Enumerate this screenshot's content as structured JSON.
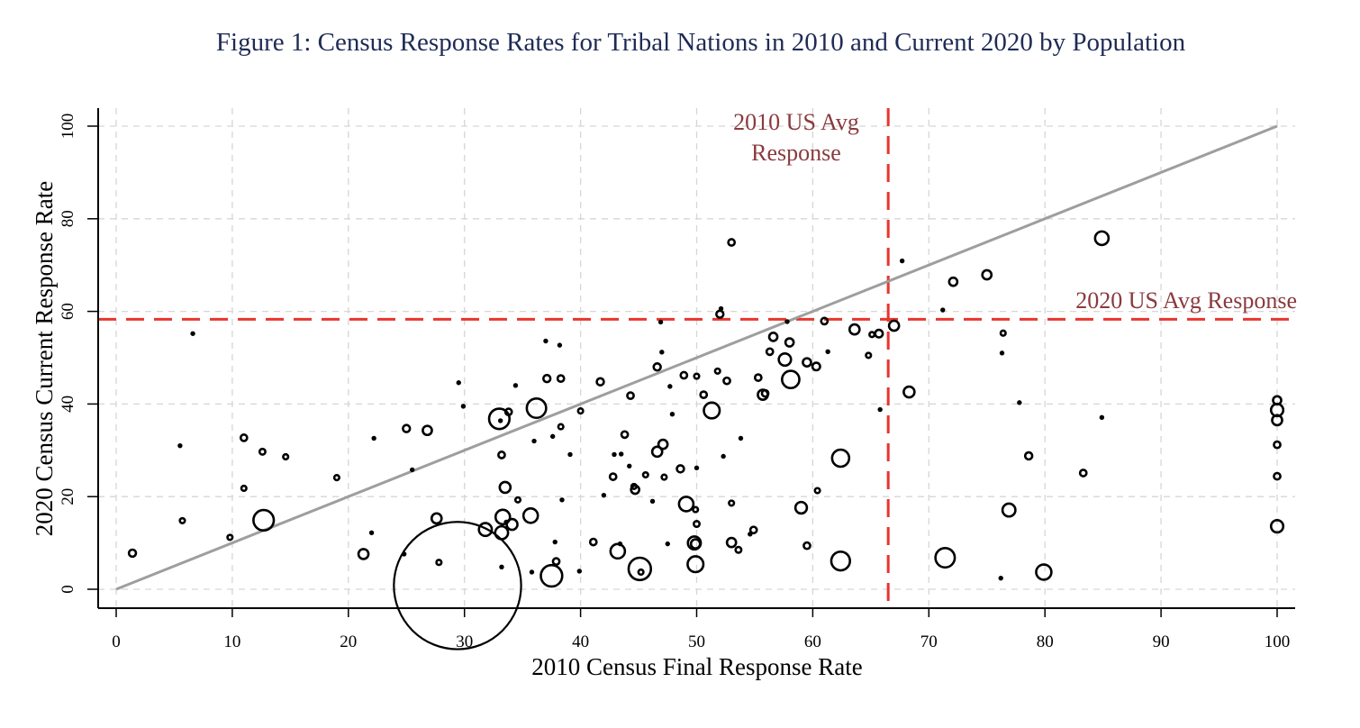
{
  "chart_data": {
    "type": "scatter",
    "subtype": "bubble",
    "title": "Figure 1: Census Response Rates for Tribal Nations in 2010 and Current 2020 by Population",
    "xlabel": "2010 Census Final Response Rate",
    "ylabel": "2020 Census Current Response Rate",
    "xlim": [
      0,
      100
    ],
    "ylim": [
      0,
      100
    ],
    "xticks": [
      0,
      10,
      20,
      30,
      40,
      50,
      60,
      70,
      80,
      90,
      100
    ],
    "yticks": [
      0,
      20,
      40,
      60,
      80,
      100
    ],
    "grid": true,
    "bubble_size_represents": "Population",
    "reference_lines": [
      {
        "name": "2010 US Avg Response",
        "orientation": "vertical",
        "value": 66.5,
        "color": "#e8352e",
        "style": "dashed",
        "label": "2010 US Avg Response",
        "label_lines": [
          "2010 US Avg",
          "Response"
        ]
      },
      {
        "name": "2020 US Avg Response",
        "orientation": "horizontal",
        "value": 58.3,
        "color": "#e8352e",
        "style": "dashed",
        "label": "2020 US Avg Response"
      }
    ],
    "diagonal": {
      "name": "45-degree line",
      "from": [
        0,
        0
      ],
      "to": [
        100,
        100
      ],
      "color": "#9e9e9e"
    },
    "annotation_color": "#8a3a3e",
    "points": [
      {
        "x": 1.4,
        "y": 7.8,
        "pop": 6
      },
      {
        "x": 5.5,
        "y": 31,
        "pop": 1.5
      },
      {
        "x": 5.7,
        "y": 14.8,
        "pop": 3
      },
      {
        "x": 6.6,
        "y": 55.2,
        "pop": 2
      },
      {
        "x": 9.8,
        "y": 11.2,
        "pop": 3
      },
      {
        "x": 11.0,
        "y": 32.7,
        "pop": 5
      },
      {
        "x": 11.0,
        "y": 21.8,
        "pop": 3
      },
      {
        "x": 12.6,
        "y": 29.7,
        "pop": 4
      },
      {
        "x": 12.7,
        "y": 14.9,
        "pop": 50
      },
      {
        "x": 14.6,
        "y": 28.6,
        "pop": 3
      },
      {
        "x": 19.0,
        "y": 24.1,
        "pop": 3
      },
      {
        "x": 21.3,
        "y": 7.6,
        "pop": 12
      },
      {
        "x": 22.0,
        "y": 12.2,
        "pop": 1.5
      },
      {
        "x": 22.2,
        "y": 32.6,
        "pop": 1
      },
      {
        "x": 24.8,
        "y": 7.6,
        "pop": 1.5
      },
      {
        "x": 25.0,
        "y": 34.7,
        "pop": 6
      },
      {
        "x": 25.5,
        "y": 25.8,
        "pop": 1.5
      },
      {
        "x": 26.8,
        "y": 34.3,
        "pop": 10
      },
      {
        "x": 27.6,
        "y": 15.3,
        "pop": 12
      },
      {
        "x": 27.8,
        "y": 5.8,
        "pop": 3
      },
      {
        "x": 29.4,
        "y": 0.8,
        "pop": 1950
      },
      {
        "x": 29.5,
        "y": 44.6,
        "pop": 2
      },
      {
        "x": 29.9,
        "y": 39.5,
        "pop": 1.5
      },
      {
        "x": 31.8,
        "y": 12.9,
        "pop": 20
      },
      {
        "x": 33.0,
        "y": 36.8,
        "pop": 50
      },
      {
        "x": 33.1,
        "y": 36.4,
        "pop": 2
      },
      {
        "x": 33.2,
        "y": 29.0,
        "pop": 5
      },
      {
        "x": 33.2,
        "y": 12.2,
        "pop": 20
      },
      {
        "x": 33.2,
        "y": 4.8,
        "pop": 2
      },
      {
        "x": 33.3,
        "y": 15.6,
        "pop": 25
      },
      {
        "x": 33.5,
        "y": 22.0,
        "pop": 14
      },
      {
        "x": 33.6,
        "y": 14.5,
        "pop": 1.5
      },
      {
        "x": 33.8,
        "y": 38.3,
        "pop": 5
      },
      {
        "x": 34.1,
        "y": 14.0,
        "pop": 14
      },
      {
        "x": 34.4,
        "y": 44.0,
        "pop": 2
      },
      {
        "x": 34.6,
        "y": 19.3,
        "pop": 3
      },
      {
        "x": 35.7,
        "y": 15.9,
        "pop": 25
      },
      {
        "x": 35.8,
        "y": 3.7,
        "pop": 2
      },
      {
        "x": 36.0,
        "y": 32.0,
        "pop": 2
      },
      {
        "x": 36.2,
        "y": 39.1,
        "pop": 45
      },
      {
        "x": 37.0,
        "y": 53.6,
        "pop": 1.5
      },
      {
        "x": 37.1,
        "y": 45.5,
        "pop": 6
      },
      {
        "x": 37.5,
        "y": 2.9,
        "pop": 55
      },
      {
        "x": 37.6,
        "y": 33.0,
        "pop": 2
      },
      {
        "x": 37.8,
        "y": 10.2,
        "pop": 2
      },
      {
        "x": 37.9,
        "y": 6.0,
        "pop": 5
      },
      {
        "x": 38.2,
        "y": 52.7,
        "pop": 2
      },
      {
        "x": 38.3,
        "y": 45.5,
        "pop": 5
      },
      {
        "x": 38.3,
        "y": 35.1,
        "pop": 3
      },
      {
        "x": 38.4,
        "y": 19.3,
        "pop": 1.5
      },
      {
        "x": 39.1,
        "y": 29.1,
        "pop": 2
      },
      {
        "x": 39.9,
        "y": 3.9,
        "pop": 2
      },
      {
        "x": 40.0,
        "y": 38.5,
        "pop": 3
      },
      {
        "x": 41.1,
        "y": 10.2,
        "pop": 5
      },
      {
        "x": 41.7,
        "y": 44.8,
        "pop": 6
      },
      {
        "x": 42.0,
        "y": 20.3,
        "pop": 1.5
      },
      {
        "x": 42.8,
        "y": 24.3,
        "pop": 5
      },
      {
        "x": 42.9,
        "y": 29.1,
        "pop": 2
      },
      {
        "x": 43.2,
        "y": 8.2,
        "pop": 25
      },
      {
        "x": 43.4,
        "y": 9.8,
        "pop": 1.5
      },
      {
        "x": 43.5,
        "y": 29.2,
        "pop": 2
      },
      {
        "x": 43.8,
        "y": 33.4,
        "pop": 5
      },
      {
        "x": 44.2,
        "y": 26.6,
        "pop": 2
      },
      {
        "x": 44.3,
        "y": 41.8,
        "pop": 5
      },
      {
        "x": 44.6,
        "y": 22.2,
        "pop": 3
      },
      {
        "x": 44.7,
        "y": 21.5,
        "pop": 8
      },
      {
        "x": 45.1,
        "y": 4.4,
        "pop": 60
      },
      {
        "x": 45.2,
        "y": 3.7,
        "pop": 3
      },
      {
        "x": 45.6,
        "y": 24.7,
        "pop": 3
      },
      {
        "x": 46.2,
        "y": 19.0,
        "pop": 1
      },
      {
        "x": 46.6,
        "y": 29.7,
        "pop": 12
      },
      {
        "x": 46.6,
        "y": 48.0,
        "pop": 6
      },
      {
        "x": 46.9,
        "y": 57.7,
        "pop": 1.5
      },
      {
        "x": 47.0,
        "y": 51.2,
        "pop": 1.5
      },
      {
        "x": 47.1,
        "y": 31.3,
        "pop": 10
      },
      {
        "x": 47.2,
        "y": 24.2,
        "pop": 3
      },
      {
        "x": 47.5,
        "y": 9.8,
        "pop": 2
      },
      {
        "x": 47.7,
        "y": 43.8,
        "pop": 2
      },
      {
        "x": 47.9,
        "y": 37.8,
        "pop": 2
      },
      {
        "x": 48.6,
        "y": 26.0,
        "pop": 6
      },
      {
        "x": 48.9,
        "y": 46.2,
        "pop": 5
      },
      {
        "x": 49.1,
        "y": 18.4,
        "pop": 25
      },
      {
        "x": 49.8,
        "y": 10.0,
        "pop": 20
      },
      {
        "x": 49.9,
        "y": 5.4,
        "pop": 30
      },
      {
        "x": 49.9,
        "y": 17.2,
        "pop": 3
      },
      {
        "x": 49.9,
        "y": 9.8,
        "pop": 10
      },
      {
        "x": 50.0,
        "y": 46.0,
        "pop": 3
      },
      {
        "x": 50.0,
        "y": 26.2,
        "pop": 1.5
      },
      {
        "x": 50.0,
        "y": 14.1,
        "pop": 4
      },
      {
        "x": 50.6,
        "y": 42.0,
        "pop": 5
      },
      {
        "x": 51.3,
        "y": 38.6,
        "pop": 30
      },
      {
        "x": 51.8,
        "y": 47.1,
        "pop": 3
      },
      {
        "x": 52.0,
        "y": 59.4,
        "pop": 6
      },
      {
        "x": 52.1,
        "y": 60.6,
        "pop": 1.5
      },
      {
        "x": 52.3,
        "y": 28.7,
        "pop": 2
      },
      {
        "x": 52.6,
        "y": 45.0,
        "pop": 5
      },
      {
        "x": 53.0,
        "y": 74.9,
        "pop": 5
      },
      {
        "x": 53.0,
        "y": 18.6,
        "pop": 3
      },
      {
        "x": 53.0,
        "y": 10.1,
        "pop": 10
      },
      {
        "x": 53.6,
        "y": 8.5,
        "pop": 4
      },
      {
        "x": 53.8,
        "y": 32.6,
        "pop": 2
      },
      {
        "x": 54.6,
        "y": 11.9,
        "pop": 2
      },
      {
        "x": 54.9,
        "y": 12.8,
        "pop": 5
      },
      {
        "x": 55.3,
        "y": 45.7,
        "pop": 5
      },
      {
        "x": 55.7,
        "y": 42.0,
        "pop": 12
      },
      {
        "x": 55.9,
        "y": 42.3,
        "pop": 5
      },
      {
        "x": 56.3,
        "y": 51.3,
        "pop": 5
      },
      {
        "x": 56.6,
        "y": 54.5,
        "pop": 8
      },
      {
        "x": 57.6,
        "y": 49.6,
        "pop": 18
      },
      {
        "x": 57.8,
        "y": 57.8,
        "pop": 2
      },
      {
        "x": 58.0,
        "y": 53.3,
        "pop": 8
      },
      {
        "x": 58.1,
        "y": 45.3,
        "pop": 36
      },
      {
        "x": 59.0,
        "y": 17.6,
        "pop": 16
      },
      {
        "x": 59.5,
        "y": 49.0,
        "pop": 8
      },
      {
        "x": 59.5,
        "y": 9.4,
        "pop": 5
      },
      {
        "x": 60.3,
        "y": 48.1,
        "pop": 7
      },
      {
        "x": 60.4,
        "y": 21.3,
        "pop": 3
      },
      {
        "x": 61.0,
        "y": 57.9,
        "pop": 5
      },
      {
        "x": 61.3,
        "y": 51.3,
        "pop": 1.5
      },
      {
        "x": 62.4,
        "y": 28.3,
        "pop": 35
      },
      {
        "x": 62.4,
        "y": 6.1,
        "pop": 42
      },
      {
        "x": 63.6,
        "y": 56.1,
        "pop": 12
      },
      {
        "x": 64.8,
        "y": 50.5,
        "pop": 3
      },
      {
        "x": 65.1,
        "y": 55.0,
        "pop": 3
      },
      {
        "x": 65.7,
        "y": 55.2,
        "pop": 7
      },
      {
        "x": 65.8,
        "y": 38.8,
        "pop": 1.5
      },
      {
        "x": 67.0,
        "y": 56.9,
        "pop": 12
      },
      {
        "x": 67.7,
        "y": 70.9,
        "pop": 1.5
      },
      {
        "x": 68.3,
        "y": 42.6,
        "pop": 14
      },
      {
        "x": 71.2,
        "y": 60.3,
        "pop": 2
      },
      {
        "x": 71.4,
        "y": 6.8,
        "pop": 45
      },
      {
        "x": 72.1,
        "y": 66.4,
        "pop": 8
      },
      {
        "x": 75.0,
        "y": 67.9,
        "pop": 10
      },
      {
        "x": 76.2,
        "y": 2.4,
        "pop": 2
      },
      {
        "x": 76.3,
        "y": 51.0,
        "pop": 2
      },
      {
        "x": 76.4,
        "y": 55.3,
        "pop": 3
      },
      {
        "x": 76.9,
        "y": 17.1,
        "pop": 20
      },
      {
        "x": 77.8,
        "y": 40.3,
        "pop": 2
      },
      {
        "x": 78.6,
        "y": 28.8,
        "pop": 6
      },
      {
        "x": 79.9,
        "y": 3.7,
        "pop": 28
      },
      {
        "x": 83.3,
        "y": 25.1,
        "pop": 5
      },
      {
        "x": 84.9,
        "y": 37.1,
        "pop": 1.5
      },
      {
        "x": 84.9,
        "y": 75.8,
        "pop": 22
      },
      {
        "x": 100,
        "y": 40.8,
        "pop": 8
      },
      {
        "x": 100,
        "y": 38.7,
        "pop": 18
      },
      {
        "x": 100,
        "y": 36.5,
        "pop": 12
      },
      {
        "x": 100,
        "y": 31.2,
        "pop": 5
      },
      {
        "x": 100,
        "y": 24.4,
        "pop": 5
      },
      {
        "x": 100,
        "y": 13.6,
        "pop": 18
      }
    ]
  }
}
